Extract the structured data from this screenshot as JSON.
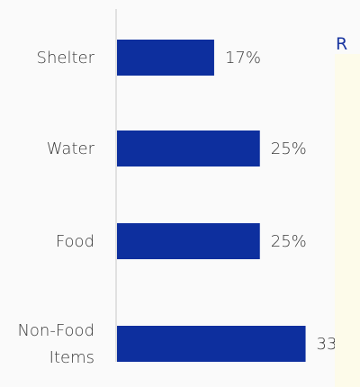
{
  "side_panel": {
    "letter": "R"
  },
  "chart_data": {
    "type": "bar",
    "orientation": "horizontal",
    "categories": [
      "Shelter",
      "Water",
      "Food",
      "Non-Food Items"
    ],
    "values": [
      17,
      25,
      25,
      33
    ],
    "value_suffix": "%",
    "xlim": [
      0,
      40
    ],
    "title": "",
    "xlabel": "",
    "ylabel": "",
    "grid": false,
    "legend": "none",
    "bar_color": "#0d2f9e",
    "label_color": "#3a3a3a",
    "axis_color": "#c8c8c8"
  }
}
